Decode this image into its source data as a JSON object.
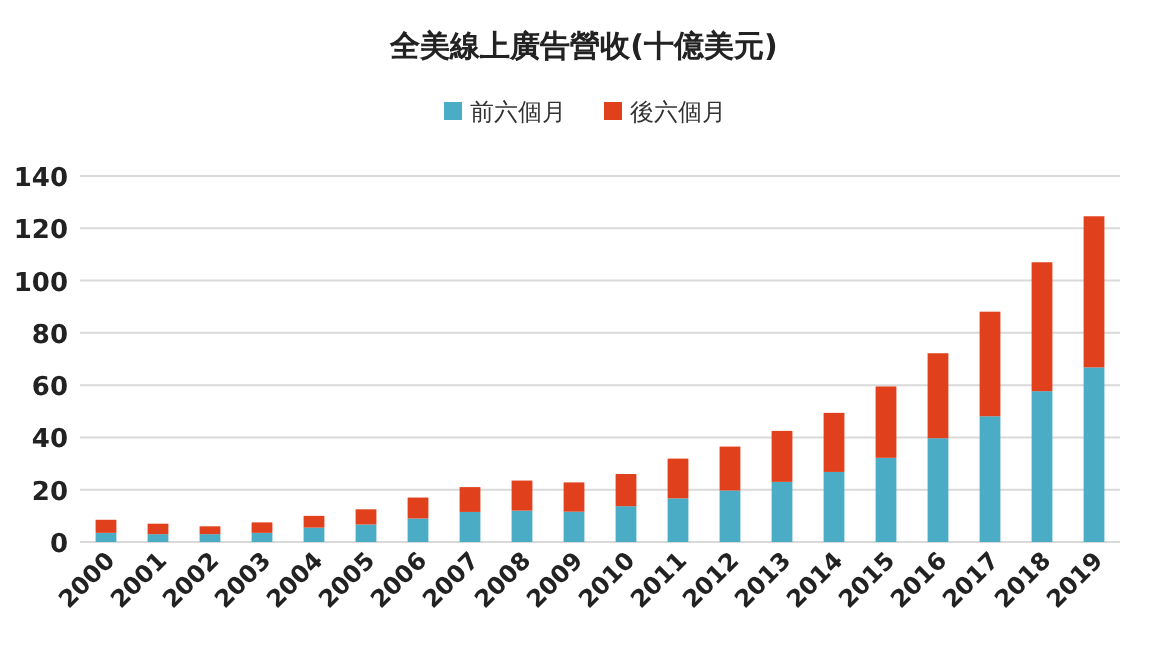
{
  "chart_data": {
    "type": "bar",
    "title": "全美線上廣告營收(十億美元)",
    "stacked": true,
    "legend": "top",
    "grid": "y",
    "ylim": [
      0,
      140
    ],
    "yticks": [
      0,
      20,
      40,
      60,
      80,
      100,
      120,
      140
    ],
    "categories": [
      "2000",
      "2001",
      "2002",
      "2003",
      "2004",
      "2005",
      "2006",
      "2007",
      "2008",
      "2009",
      "2010",
      "2011",
      "2012",
      "2013",
      "2014",
      "2015",
      "2016",
      "2017",
      "2018",
      "2019"
    ],
    "series": [
      {
        "name": "前六個月",
        "color": "#4bacc6",
        "values": [
          3.5,
          3,
          3,
          3.5,
          5.5,
          6.7,
          9,
          11.5,
          12,
          11.6,
          13.7,
          16.7,
          19.7,
          23,
          26.8,
          32.2,
          39.7,
          48.1,
          57.7,
          66.8
        ]
      },
      {
        "name": "後六個月",
        "color": "#e0401c",
        "values": [
          5,
          4,
          3,
          4,
          4.5,
          5.8,
          8,
          9.5,
          11.5,
          11.2,
          12.3,
          15.2,
          16.8,
          19.5,
          22.6,
          27.3,
          32.5,
          40,
          49.3,
          57.8
        ]
      }
    ]
  }
}
